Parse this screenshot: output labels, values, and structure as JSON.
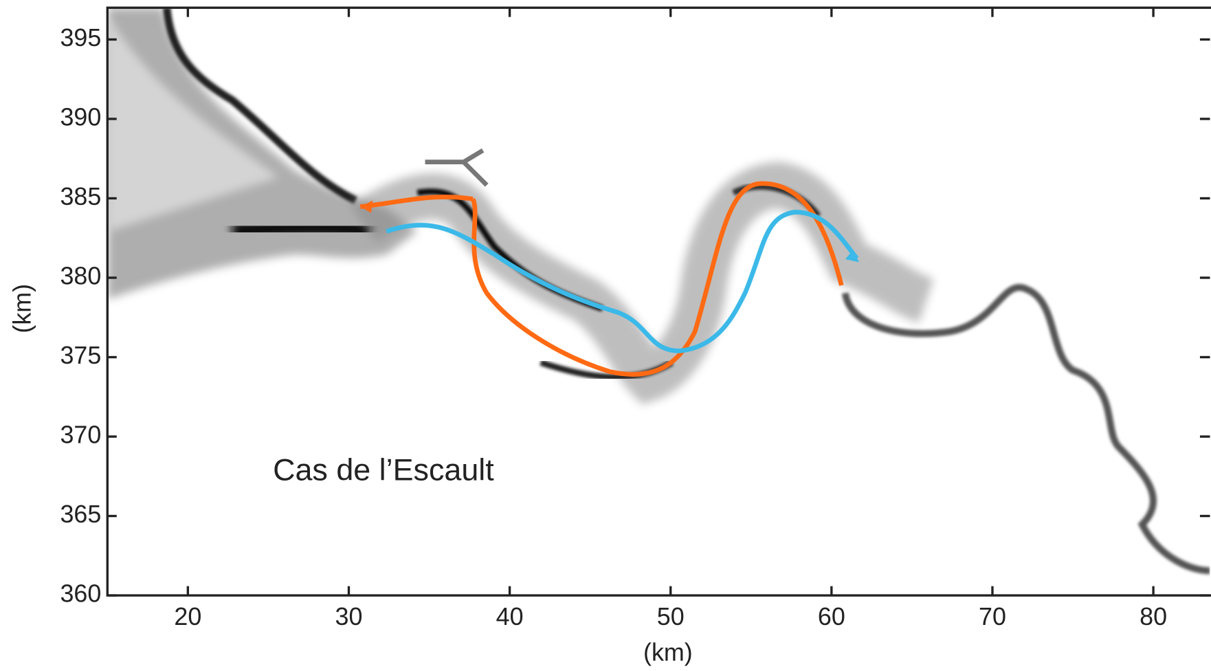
{
  "chart_data": {
    "type": "map",
    "x_label": "(km)",
    "y_label": "(km)",
    "annotation": "Cas de l’Escault",
    "xlim": [
      15,
      84
    ],
    "ylim": [
      360,
      397
    ],
    "xticks": [
      20,
      30,
      40,
      50,
      60,
      70,
      80
    ],
    "yticks": [
      360,
      365,
      370,
      375,
      380,
      385,
      390,
      395
    ]
  }
}
